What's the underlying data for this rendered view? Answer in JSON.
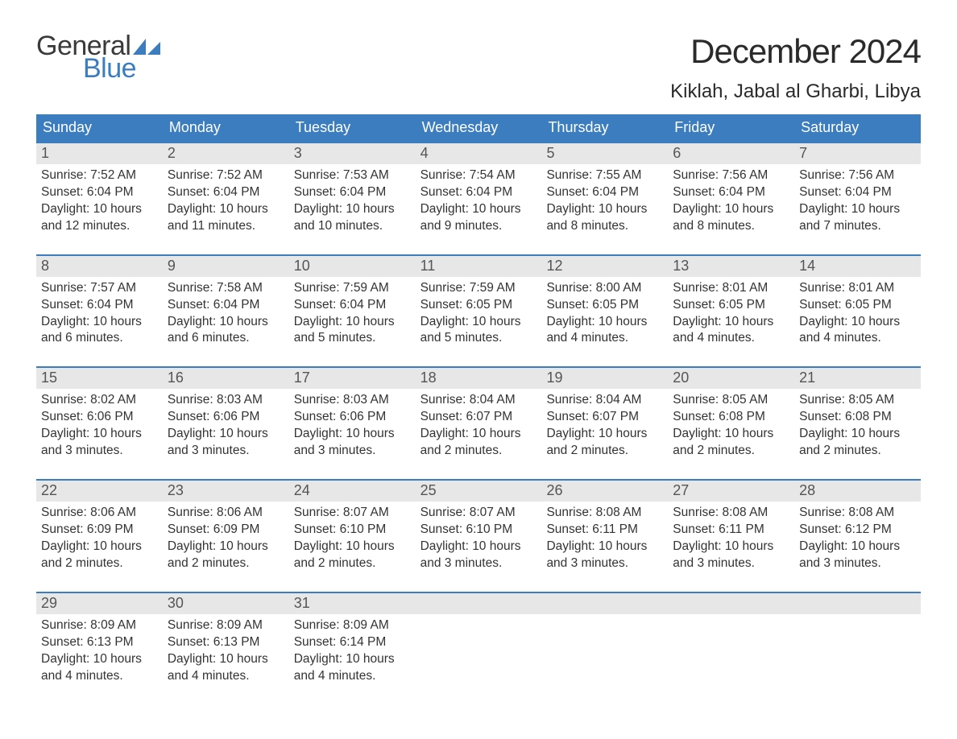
{
  "brand": {
    "word1": "General",
    "word2": "Blue",
    "word1_color": "#3a3a3a",
    "word2_color": "#3b7dbf",
    "flag_color": "#3b7dbf"
  },
  "title": "December 2024",
  "location": "Kiklah, Jabal al Gharbi, Libya",
  "colors": {
    "header_bg": "#3b7dbf",
    "header_text": "#ffffff",
    "daynum_bg": "#e7e7e7",
    "daynum_text": "#555555",
    "body_text": "#333333",
    "week_border": "#3b7dbf",
    "page_bg": "#ffffff"
  },
  "typography": {
    "title_fontsize": 42,
    "location_fontsize": 24,
    "dow_fontsize": 18,
    "daynum_fontsize": 18,
    "body_fontsize": 15.5,
    "logo_fontsize": 34
  },
  "days_of_week": [
    "Sunday",
    "Monday",
    "Tuesday",
    "Wednesday",
    "Thursday",
    "Friday",
    "Saturday"
  ],
  "weeks": [
    [
      {
        "n": "1",
        "sunrise": "Sunrise: 7:52 AM",
        "sunset": "Sunset: 6:04 PM",
        "daylight1": "Daylight: 10 hours",
        "daylight2": "and 12 minutes."
      },
      {
        "n": "2",
        "sunrise": "Sunrise: 7:52 AM",
        "sunset": "Sunset: 6:04 PM",
        "daylight1": "Daylight: 10 hours",
        "daylight2": "and 11 minutes."
      },
      {
        "n": "3",
        "sunrise": "Sunrise: 7:53 AM",
        "sunset": "Sunset: 6:04 PM",
        "daylight1": "Daylight: 10 hours",
        "daylight2": "and 10 minutes."
      },
      {
        "n": "4",
        "sunrise": "Sunrise: 7:54 AM",
        "sunset": "Sunset: 6:04 PM",
        "daylight1": "Daylight: 10 hours",
        "daylight2": "and 9 minutes."
      },
      {
        "n": "5",
        "sunrise": "Sunrise: 7:55 AM",
        "sunset": "Sunset: 6:04 PM",
        "daylight1": "Daylight: 10 hours",
        "daylight2": "and 8 minutes."
      },
      {
        "n": "6",
        "sunrise": "Sunrise: 7:56 AM",
        "sunset": "Sunset: 6:04 PM",
        "daylight1": "Daylight: 10 hours",
        "daylight2": "and 8 minutes."
      },
      {
        "n": "7",
        "sunrise": "Sunrise: 7:56 AM",
        "sunset": "Sunset: 6:04 PM",
        "daylight1": "Daylight: 10 hours",
        "daylight2": "and 7 minutes."
      }
    ],
    [
      {
        "n": "8",
        "sunrise": "Sunrise: 7:57 AM",
        "sunset": "Sunset: 6:04 PM",
        "daylight1": "Daylight: 10 hours",
        "daylight2": "and 6 minutes."
      },
      {
        "n": "9",
        "sunrise": "Sunrise: 7:58 AM",
        "sunset": "Sunset: 6:04 PM",
        "daylight1": "Daylight: 10 hours",
        "daylight2": "and 6 minutes."
      },
      {
        "n": "10",
        "sunrise": "Sunrise: 7:59 AM",
        "sunset": "Sunset: 6:04 PM",
        "daylight1": "Daylight: 10 hours",
        "daylight2": "and 5 minutes."
      },
      {
        "n": "11",
        "sunrise": "Sunrise: 7:59 AM",
        "sunset": "Sunset: 6:05 PM",
        "daylight1": "Daylight: 10 hours",
        "daylight2": "and 5 minutes."
      },
      {
        "n": "12",
        "sunrise": "Sunrise: 8:00 AM",
        "sunset": "Sunset: 6:05 PM",
        "daylight1": "Daylight: 10 hours",
        "daylight2": "and 4 minutes."
      },
      {
        "n": "13",
        "sunrise": "Sunrise: 8:01 AM",
        "sunset": "Sunset: 6:05 PM",
        "daylight1": "Daylight: 10 hours",
        "daylight2": "and 4 minutes."
      },
      {
        "n": "14",
        "sunrise": "Sunrise: 8:01 AM",
        "sunset": "Sunset: 6:05 PM",
        "daylight1": "Daylight: 10 hours",
        "daylight2": "and 4 minutes."
      }
    ],
    [
      {
        "n": "15",
        "sunrise": "Sunrise: 8:02 AM",
        "sunset": "Sunset: 6:06 PM",
        "daylight1": "Daylight: 10 hours",
        "daylight2": "and 3 minutes."
      },
      {
        "n": "16",
        "sunrise": "Sunrise: 8:03 AM",
        "sunset": "Sunset: 6:06 PM",
        "daylight1": "Daylight: 10 hours",
        "daylight2": "and 3 minutes."
      },
      {
        "n": "17",
        "sunrise": "Sunrise: 8:03 AM",
        "sunset": "Sunset: 6:06 PM",
        "daylight1": "Daylight: 10 hours",
        "daylight2": "and 3 minutes."
      },
      {
        "n": "18",
        "sunrise": "Sunrise: 8:04 AM",
        "sunset": "Sunset: 6:07 PM",
        "daylight1": "Daylight: 10 hours",
        "daylight2": "and 2 minutes."
      },
      {
        "n": "19",
        "sunrise": "Sunrise: 8:04 AM",
        "sunset": "Sunset: 6:07 PM",
        "daylight1": "Daylight: 10 hours",
        "daylight2": "and 2 minutes."
      },
      {
        "n": "20",
        "sunrise": "Sunrise: 8:05 AM",
        "sunset": "Sunset: 6:08 PM",
        "daylight1": "Daylight: 10 hours",
        "daylight2": "and 2 minutes."
      },
      {
        "n": "21",
        "sunrise": "Sunrise: 8:05 AM",
        "sunset": "Sunset: 6:08 PM",
        "daylight1": "Daylight: 10 hours",
        "daylight2": "and 2 minutes."
      }
    ],
    [
      {
        "n": "22",
        "sunrise": "Sunrise: 8:06 AM",
        "sunset": "Sunset: 6:09 PM",
        "daylight1": "Daylight: 10 hours",
        "daylight2": "and 2 minutes."
      },
      {
        "n": "23",
        "sunrise": "Sunrise: 8:06 AM",
        "sunset": "Sunset: 6:09 PM",
        "daylight1": "Daylight: 10 hours",
        "daylight2": "and 2 minutes."
      },
      {
        "n": "24",
        "sunrise": "Sunrise: 8:07 AM",
        "sunset": "Sunset: 6:10 PM",
        "daylight1": "Daylight: 10 hours",
        "daylight2": "and 2 minutes."
      },
      {
        "n": "25",
        "sunrise": "Sunrise: 8:07 AM",
        "sunset": "Sunset: 6:10 PM",
        "daylight1": "Daylight: 10 hours",
        "daylight2": "and 3 minutes."
      },
      {
        "n": "26",
        "sunrise": "Sunrise: 8:08 AM",
        "sunset": "Sunset: 6:11 PM",
        "daylight1": "Daylight: 10 hours",
        "daylight2": "and 3 minutes."
      },
      {
        "n": "27",
        "sunrise": "Sunrise: 8:08 AM",
        "sunset": "Sunset: 6:11 PM",
        "daylight1": "Daylight: 10 hours",
        "daylight2": "and 3 minutes."
      },
      {
        "n": "28",
        "sunrise": "Sunrise: 8:08 AM",
        "sunset": "Sunset: 6:12 PM",
        "daylight1": "Daylight: 10 hours",
        "daylight2": "and 3 minutes."
      }
    ],
    [
      {
        "n": "29",
        "sunrise": "Sunrise: 8:09 AM",
        "sunset": "Sunset: 6:13 PM",
        "daylight1": "Daylight: 10 hours",
        "daylight2": "and 4 minutes."
      },
      {
        "n": "30",
        "sunrise": "Sunrise: 8:09 AM",
        "sunset": "Sunset: 6:13 PM",
        "daylight1": "Daylight: 10 hours",
        "daylight2": "and 4 minutes."
      },
      {
        "n": "31",
        "sunrise": "Sunrise: 8:09 AM",
        "sunset": "Sunset: 6:14 PM",
        "daylight1": "Daylight: 10 hours",
        "daylight2": "and 4 minutes."
      },
      {
        "empty": true
      },
      {
        "empty": true
      },
      {
        "empty": true
      },
      {
        "empty": true
      }
    ]
  ]
}
